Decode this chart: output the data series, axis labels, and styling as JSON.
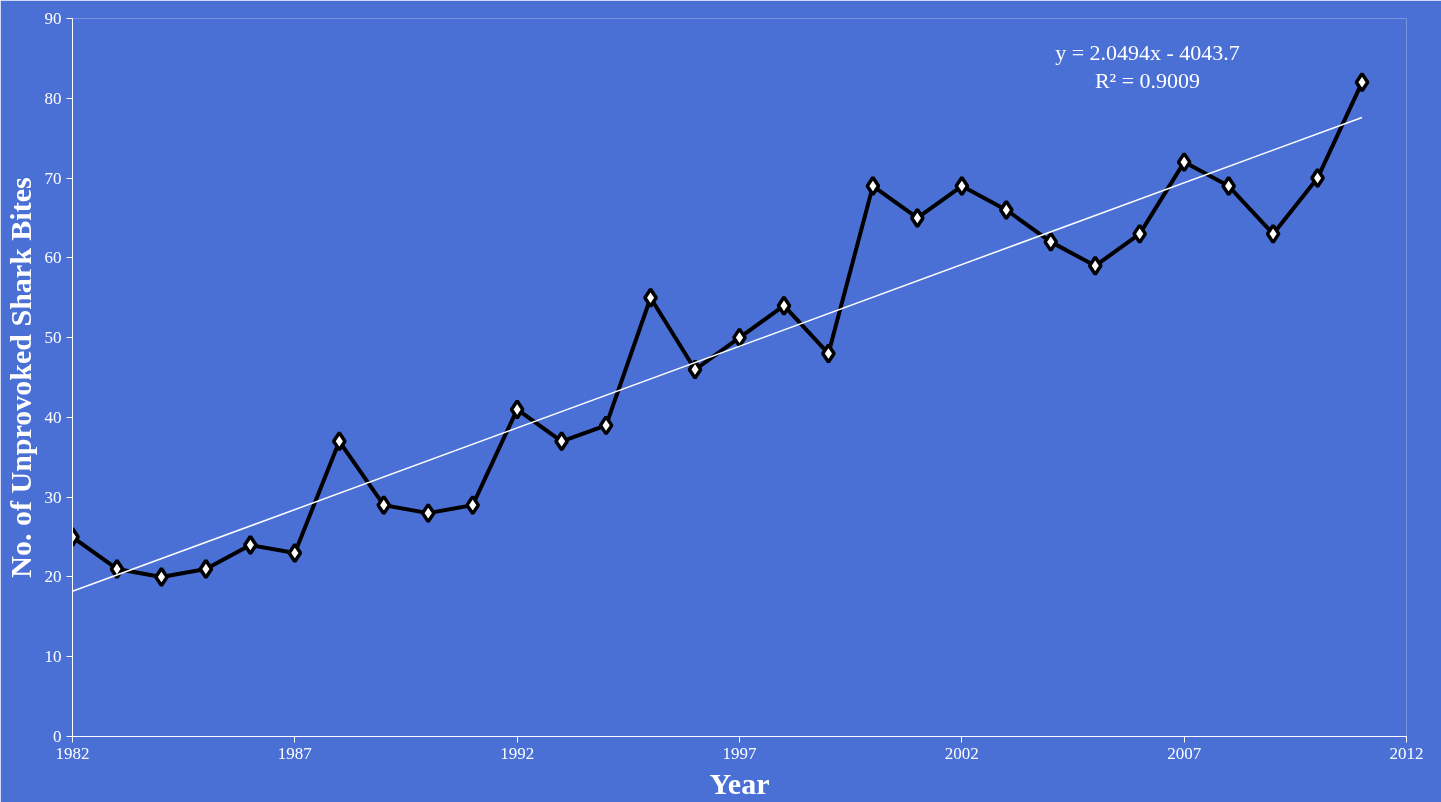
{
  "chart_data": {
    "type": "line",
    "xlabel": "Year",
    "ylabel": "No. of Unprovoked Shark Bites",
    "x": [
      1982,
      1983,
      1984,
      1985,
      1986,
      1987,
      1988,
      1989,
      1990,
      1991,
      1992,
      1993,
      1994,
      1995,
      1996,
      1997,
      1998,
      1999,
      2000,
      2001,
      2002,
      2003,
      2004,
      2005,
      2006,
      2007,
      2008,
      2009,
      2010,
      2011
    ],
    "series": [
      {
        "color": "#000000",
        "marker": "diamond",
        "values": [
          25,
          21,
          20,
          21,
          24,
          23,
          37,
          29,
          28,
          29,
          41,
          37,
          39,
          55,
          46,
          50,
          54,
          48,
          69,
          65,
          69,
          66,
          62,
          59,
          63,
          72,
          69,
          63,
          70,
          82
        ]
      },
      {
        "type": "line",
        "color": "#ffffff",
        "marker": "none",
        "x": [
          1982,
          2011
        ],
        "values": [
          18.2,
          77.6
        ]
      }
    ],
    "annotations": [
      "y = 2.0494x - 4043.7",
      "R² = 0.9009"
    ],
    "xlim": [
      1982,
      2012
    ],
    "xticks": [
      1982,
      1987,
      1992,
      1997,
      2002,
      2007,
      2012
    ],
    "ylim": [
      0,
      90
    ],
    "yticks": [
      0,
      10,
      20,
      30,
      40,
      50,
      60,
      70,
      80,
      90
    ],
    "grid": false
  }
}
